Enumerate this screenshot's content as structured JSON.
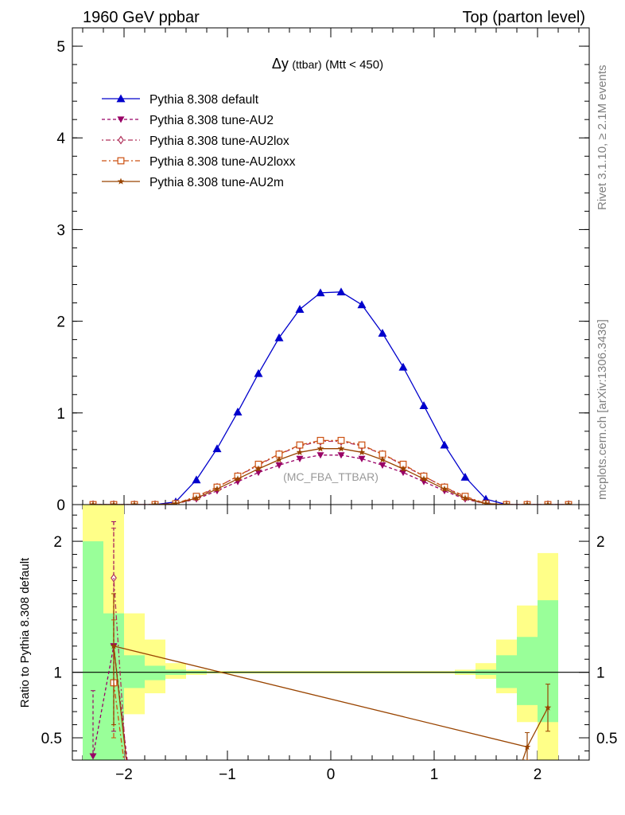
{
  "header": {
    "left": "1960 GeV ppbar",
    "right": "Top (parton level)"
  },
  "side": {
    "top": "Rivet 3.1.10, ≥ 2.1M events",
    "bottom": "mcplots.cern.ch [arXiv:1306.3436]"
  },
  "plot_title": {
    "main": "Δy",
    "sub": "(ttbar)",
    "cut": "(Mtt < 450)"
  },
  "watermark": "(MC_FBA_TTBAR)",
  "ratio_ylabel": "Ratio to Pythia 8.308 default",
  "chart_data": {
    "type": "line",
    "xlim": [
      -2.5,
      2.5
    ],
    "ylim": [
      0,
      5.2
    ],
    "ratio_ylim": [
      0.33,
      2.28
    ],
    "x_ticks": [
      -2,
      -1,
      0,
      1,
      2
    ],
    "x_tick_labels": [
      "−2",
      "−1",
      "0",
      "1",
      "2"
    ],
    "y_ticks": [
      0,
      1,
      2,
      3,
      4,
      5
    ],
    "y_tick_labels": [
      "0",
      "1",
      "2",
      "3",
      "4",
      "5"
    ],
    "ratio_ticks": [
      0.5,
      1,
      2
    ],
    "ratio_tick_labels": [
      "0.5",
      "1",
      "2"
    ],
    "x": [
      -2.3,
      -2.1,
      -1.9,
      -1.7,
      -1.5,
      -1.3,
      -1.1,
      -0.9,
      -0.7,
      -0.5,
      -0.3,
      -0.1,
      0.1,
      0.3,
      0.5,
      0.7,
      0.9,
      1.1,
      1.3,
      1.5,
      1.7,
      1.9,
      2.1,
      2.3
    ],
    "series": [
      {
        "name": "Pythia 8.308 default",
        "color": "#0000cc",
        "marker": "triangle-up",
        "dash": "",
        "values": [
          0.0,
          0.0,
          0.0,
          0.0,
          0.03,
          0.27,
          0.61,
          1.01,
          1.43,
          1.82,
          2.13,
          2.31,
          2.32,
          2.18,
          1.87,
          1.5,
          1.08,
          0.65,
          0.3,
          0.06,
          0.0,
          0.0,
          0.0,
          0.0
        ]
      },
      {
        "name": "Pythia 8.308 tune-AU2",
        "color": "#990066",
        "marker": "triangle-down",
        "dash": "4,3",
        "values": [
          0.0,
          0.0,
          0.0,
          0.0,
          0.01,
          0.06,
          0.15,
          0.25,
          0.35,
          0.43,
          0.5,
          0.54,
          0.54,
          0.5,
          0.43,
          0.35,
          0.25,
          0.15,
          0.06,
          0.01,
          0.0,
          0.0,
          0.0,
          0.0
        ]
      },
      {
        "name": "Pythia 8.308 tune-AU2lox",
        "color": "#b0305a",
        "marker": "diamond-open",
        "dash": "2,3,6,3",
        "values": [
          0.0,
          0.0,
          0.0,
          0.0,
          0.01,
          0.08,
          0.19,
          0.31,
          0.43,
          0.55,
          0.64,
          0.69,
          0.69,
          0.64,
          0.55,
          0.43,
          0.31,
          0.19,
          0.08,
          0.01,
          0.0,
          0.0,
          0.0,
          0.0
        ]
      },
      {
        "name": "Pythia 8.308 tune-AU2loxx",
        "color": "#cc5010",
        "marker": "square-open",
        "dash": "6,3,2,3",
        "values": [
          0.0,
          0.0,
          0.0,
          0.0,
          0.01,
          0.09,
          0.19,
          0.31,
          0.44,
          0.55,
          0.65,
          0.7,
          0.7,
          0.65,
          0.55,
          0.44,
          0.31,
          0.19,
          0.09,
          0.01,
          0.0,
          0.0,
          0.0,
          0.0
        ]
      },
      {
        "name": "Pythia 8.308 tune-AU2m",
        "color": "#994400",
        "marker": "star",
        "dash": "",
        "values": [
          0.0,
          0.0,
          0.0,
          0.0,
          0.01,
          0.07,
          0.17,
          0.28,
          0.39,
          0.49,
          0.57,
          0.61,
          0.61,
          0.57,
          0.49,
          0.39,
          0.28,
          0.17,
          0.07,
          0.01,
          0.0,
          0.0,
          0.0,
          0.0
        ]
      }
    ],
    "ratio_bands": {
      "edges": [
        -2.4,
        -2.2,
        -2.0,
        -1.8,
        -1.6,
        -1.4,
        -1.2,
        1.2,
        1.4,
        1.6,
        1.8,
        2.0,
        2.2
      ],
      "green": [
        [
          0.33,
          2.0
        ],
        [
          0.33,
          1.45
        ],
        [
          0.88,
          1.13
        ],
        [
          0.94,
          1.05
        ],
        [
          0.98,
          1.02
        ],
        [
          0.99,
          1.01
        ],
        [
          0.995,
          1.005
        ],
        [
          0.99,
          1.01
        ],
        [
          0.98,
          1.02
        ],
        [
          0.88,
          1.13
        ],
        [
          0.75,
          1.27
        ],
        [
          0.62,
          1.55
        ]
      ],
      "yellow": [
        [
          0.33,
          2.28
        ],
        [
          0.33,
          2.28
        ],
        [
          0.68,
          1.45
        ],
        [
          0.84,
          1.25
        ],
        [
          0.95,
          1.07
        ],
        [
          0.98,
          1.02
        ],
        [
          0.99,
          1.01
        ],
        [
          0.98,
          1.02
        ],
        [
          0.95,
          1.07
        ],
        [
          0.84,
          1.25
        ],
        [
          0.62,
          1.51
        ],
        [
          0.33,
          1.91
        ]
      ]
    },
    "ratio_series": [
      {
        "name": "Pythia 8.308 tune-AU2",
        "points": [
          [
            -2.3,
            0.36,
            0.0,
            0.86
          ],
          [
            -2.1,
            1.2,
            0.55,
            2.15
          ]
        ]
      },
      {
        "name": "Pythia 8.308 tune-AU2lox",
        "points": [
          [
            -2.1,
            1.72,
            0.9,
            2.1
          ]
        ]
      },
      {
        "name": "Pythia 8.308 tune-AU2loxx",
        "points": [
          [
            -2.1,
            0.92,
            0.5,
            1.4
          ]
        ]
      },
      {
        "name": "Pythia 8.308 tune-AU2m",
        "points": [
          [
            -2.1,
            1.2,
            0.6,
            1.6
          ],
          [
            1.9,
            0.43,
            0.33,
            0.54
          ],
          [
            2.1,
            0.73,
            0.55,
            0.91
          ]
        ]
      }
    ]
  }
}
